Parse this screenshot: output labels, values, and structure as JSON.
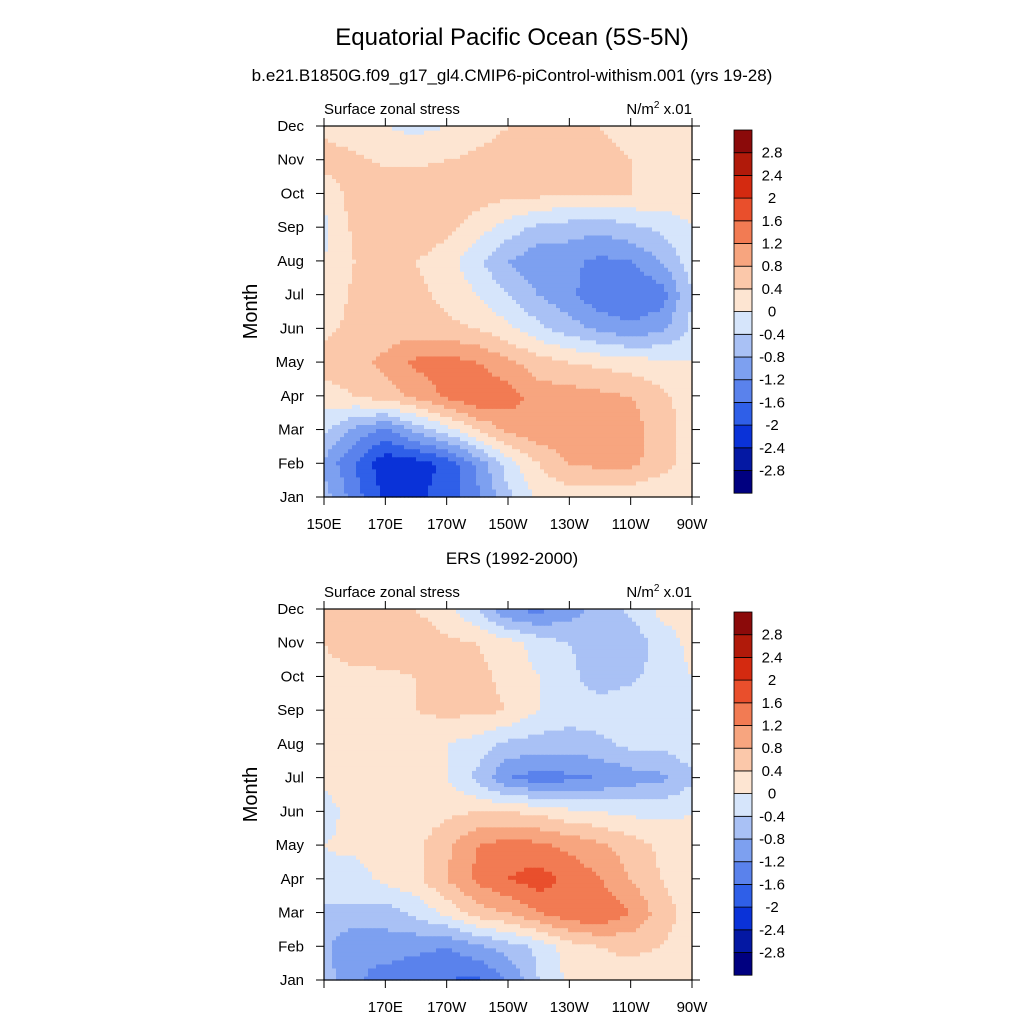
{
  "figure": {
    "title": "Equatorial Pacific Ocean (5S-5N)"
  },
  "colorbar_colors": [
    "#000080",
    "#0418a3",
    "#0a32d8",
    "#2f5fe8",
    "#5a82ec",
    "#7da0f0",
    "#a9c1f5",
    "#d6e5fb",
    "#fde5d2",
    "#fbc8aa",
    "#f7a57f",
    "#f27b53",
    "#e94f2c",
    "#d42a10",
    "#b11a0a",
    "#8b0a0a"
  ],
  "chart_data": [
    {
      "type": "heatmap",
      "subtitle": "b.e21.B1850G.f09_g17_gl4.CMIP6-piControl-withism.001 (yrs 19-28)",
      "left_label": "Surface zonal stress",
      "right_label_base": "N/m",
      "right_label_sup": "2",
      "right_label_suffix": " x.01",
      "ylabel": "Month",
      "xlim": [
        150,
        270
      ],
      "x_ticks": [
        "150E",
        "170E",
        "170W",
        "150W",
        "130W",
        "110W",
        "90W"
      ],
      "y_ticks": [
        "Jan",
        "Feb",
        "Mar",
        "Apr",
        "May",
        "Jun",
        "Jul",
        "Aug",
        "Sep",
        "Oct",
        "Nov",
        "Dec"
      ],
      "colorbar_levels": [
        "2.8",
        "2.4",
        "2",
        "1.6",
        "1.2",
        "0.8",
        "0.4",
        "0",
        "-0.4",
        "-0.8",
        "-1.2",
        "-1.6",
        "-2",
        "-2.4",
        "-2.8"
      ],
      "grid_x": [
        150,
        160,
        170,
        180,
        190,
        200,
        210,
        220,
        230,
        240,
        250,
        260,
        270
      ],
      "grid_y": [
        "Jan",
        "Feb",
        "Mar",
        "Apr",
        "May",
        "Jun",
        "Jul",
        "Aug",
        "Sep",
        "Oct",
        "Nov",
        "Dec"
      ],
      "values": [
        [
          -0.6,
          -1.4,
          -2.1,
          -2.1,
          -1.8,
          -1.3,
          -0.5,
          0.1,
          0.2,
          0.1,
          0.1,
          0.0,
          0.0
        ],
        [
          -0.9,
          -1.6,
          -2.3,
          -2.2,
          -1.9,
          -1.1,
          -0.2,
          0.4,
          0.8,
          0.9,
          0.9,
          0.6,
          0.2
        ],
        [
          -0.3,
          -0.9,
          -1.3,
          -0.7,
          -0.2,
          0.4,
          0.9,
          1.1,
          1.1,
          1.1,
          1.0,
          0.6,
          0.2
        ],
        [
          0.2,
          0.4,
          0.6,
          0.9,
          1.3,
          1.6,
          1.4,
          1.0,
          1.0,
          0.9,
          0.8,
          0.5,
          0.2
        ],
        [
          0.6,
          0.7,
          0.9,
          1.3,
          1.4,
          1.2,
          0.9,
          0.6,
          0.4,
          0.3,
          0.2,
          0.1,
          0.0
        ],
        [
          0.3,
          0.5,
          0.6,
          0.6,
          0.5,
          0.4,
          0.1,
          -0.3,
          -0.6,
          -0.9,
          -1.1,
          -0.9,
          -0.3
        ],
        [
          0.1,
          0.5,
          0.6,
          0.5,
          0.3,
          0.0,
          -0.4,
          -0.8,
          -1.1,
          -1.5,
          -1.6,
          -1.4,
          -0.4
        ],
        [
          0.0,
          0.4,
          0.5,
          0.4,
          0.2,
          -0.3,
          -0.8,
          -1.1,
          -1.1,
          -1.3,
          -1.2,
          -0.8,
          -0.2
        ],
        [
          -0.1,
          0.5,
          0.6,
          0.7,
          0.5,
          0.2,
          -0.2,
          -0.5,
          -0.6,
          -0.7,
          -0.5,
          -0.3,
          0.0
        ],
        [
          0.1,
          0.6,
          0.8,
          0.8,
          0.7,
          0.6,
          0.5,
          0.5,
          0.4,
          0.4,
          0.4,
          0.3,
          0.2
        ],
        [
          0.6,
          0.5,
          0.3,
          0.3,
          0.4,
          0.5,
          0.6,
          0.6,
          0.5,
          0.5,
          0.4,
          0.3,
          0.2
        ],
        [
          0.3,
          0.1,
          0.0,
          -0.1,
          0.0,
          0.2,
          0.4,
          0.5,
          0.5,
          0.4,
          0.3,
          0.3,
          0.2
        ]
      ]
    },
    {
      "type": "heatmap",
      "subtitle": "ERS (1992-2000)",
      "left_label": "Surface zonal stress",
      "right_label_base": "N/m",
      "right_label_sup": "2",
      "right_label_suffix": " x.01",
      "ylabel": "Month",
      "xlim": [
        150,
        270
      ],
      "x_ticks": [
        "",
        "170E",
        "170W",
        "150W",
        "130W",
        "110W",
        "90W"
      ],
      "y_ticks": [
        "Jan",
        "Feb",
        "Mar",
        "Apr",
        "May",
        "Jun",
        "Jul",
        "Aug",
        "Sep",
        "Oct",
        "Nov",
        "Dec"
      ],
      "colorbar_levels": [
        "2.8",
        "2.4",
        "2",
        "1.6",
        "1.2",
        "0.8",
        "0.4",
        "0",
        "-0.4",
        "-0.8",
        "-1.2",
        "-1.6",
        "-2",
        "-2.4",
        "-2.8"
      ],
      "grid_x": [
        150,
        160,
        170,
        180,
        190,
        200,
        210,
        220,
        230,
        240,
        250,
        260,
        270
      ],
      "grid_y": [
        "Jan",
        "Feb",
        "Mar",
        "Apr",
        "May",
        "Jun",
        "Jul",
        "Aug",
        "Sep",
        "Oct",
        "Nov",
        "Dec"
      ],
      "values": [
        [
          -0.6,
          -1.1,
          -1.4,
          -1.5,
          -1.6,
          -1.7,
          -1.2,
          -0.4,
          0.1,
          0.2,
          0.2,
          0.1,
          0.1
        ],
        [
          -0.7,
          -1.2,
          -1.0,
          -1.1,
          -1.2,
          -0.9,
          -0.6,
          -0.3,
          0.2,
          0.4,
          0.5,
          0.4,
          0.2
        ],
        [
          -0.5,
          -0.5,
          -0.6,
          -0.3,
          0.1,
          0.6,
          0.8,
          1.2,
          1.5,
          1.6,
          1.2,
          0.6,
          0.2
        ],
        [
          -0.1,
          -0.2,
          0.1,
          0.3,
          0.8,
          1.3,
          1.6,
          1.8,
          1.5,
          1.2,
          0.8,
          0.4,
          0.1
        ],
        [
          0.0,
          0.1,
          0.3,
          0.3,
          0.7,
          1.2,
          1.4,
          1.3,
          1.1,
          0.9,
          0.6,
          0.3,
          0.1
        ],
        [
          -0.2,
          0.2,
          0.3,
          0.2,
          0.3,
          0.4,
          0.4,
          0.3,
          0.1,
          0.0,
          -0.1,
          -0.1,
          0.0
        ],
        [
          0.1,
          0.3,
          0.2,
          0.1,
          0.0,
          -0.5,
          -1.2,
          -1.4,
          -1.3,
          -1.2,
          -1.0,
          -0.9,
          -0.5
        ],
        [
          0.3,
          0.4,
          0.3,
          0.2,
          0.0,
          -0.2,
          -0.5,
          -0.6,
          -0.6,
          -0.5,
          -0.3,
          -0.3,
          -0.1
        ],
        [
          0.3,
          0.4,
          0.2,
          0.4,
          0.5,
          0.5,
          0.4,
          0.0,
          -0.2,
          -0.2,
          -0.1,
          -0.1,
          0.0
        ],
        [
          0.3,
          0.3,
          0.3,
          0.4,
          0.5,
          0.5,
          0.3,
          0.0,
          -0.3,
          -0.6,
          -0.5,
          -0.2,
          0.0
        ],
        [
          0.4,
          0.6,
          0.7,
          0.7,
          0.5,
          0.4,
          0.2,
          -0.2,
          -0.4,
          -0.6,
          -0.7,
          -0.2,
          0.1
        ],
        [
          0.5,
          0.6,
          0.5,
          0.4,
          0.1,
          -0.4,
          -1.2,
          -1.3,
          -1.0,
          -0.6,
          -0.3,
          0.1,
          0.2
        ]
      ]
    }
  ]
}
